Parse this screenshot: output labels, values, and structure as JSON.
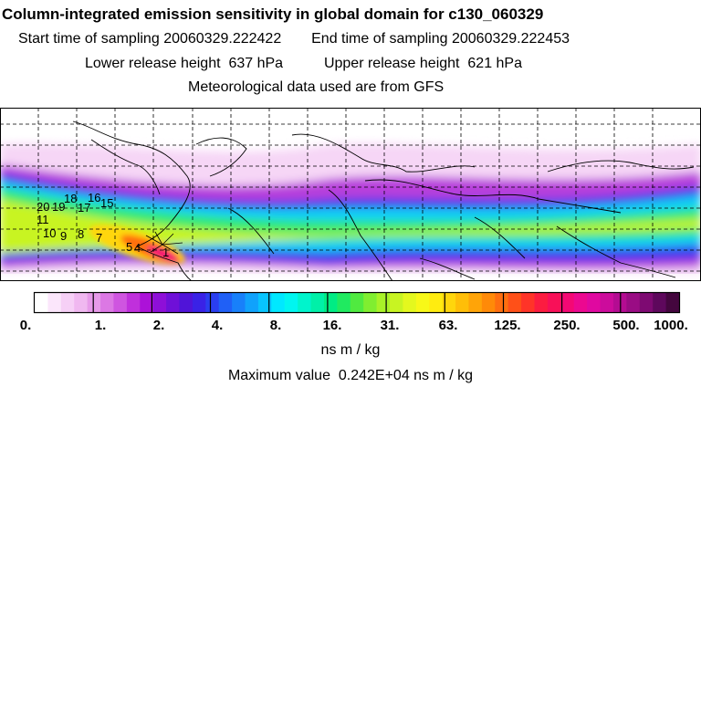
{
  "header": {
    "title": "Column-integrated emission sensitivity in global domain for c130_060329",
    "start_label": "Start time of sampling",
    "start_value": "20060329.222422",
    "end_label": "End time of sampling",
    "end_value": "20060329.222453",
    "lower_label": "Lower release height",
    "lower_value": "637 hPa",
    "upper_label": "Upper release height",
    "upper_value": "621 hPa",
    "met_line": "Meteorological data used are from GFS"
  },
  "map": {
    "track_labels": [
      "20",
      "19",
      "18",
      "17",
      "16",
      "15",
      "11",
      "10",
      "9",
      "8",
      "7",
      "5",
      "4",
      "1"
    ],
    "colors": {
      "land_outline": "#000000",
      "grid": "#000000"
    }
  },
  "colorbar": {
    "units": "ns m / kg",
    "tick_labels": [
      "0.",
      "1.",
      "2.",
      "4.",
      "8.",
      "16.",
      "31.",
      "63.",
      "125.",
      "250.",
      "500.",
      "1000."
    ],
    "colors": [
      "#ffffff",
      "#fbe6fb",
      "#f6d0f6",
      "#f0b8f0",
      "#e79ae9",
      "#dc78e4",
      "#cf55e0",
      "#c030dc",
      "#ac12d8",
      "#8e0fd8",
      "#6f10d8",
      "#5014d8",
      "#3a22e6",
      "#2a3ef0",
      "#2060f6",
      "#1880fa",
      "#10a2fc",
      "#08c4fe",
      "#00e8ff",
      "#00f6f0",
      "#00f4cc",
      "#00f0a8",
      "#00ec84",
      "#20ea60",
      "#50ea40",
      "#80ee30",
      "#a8f228",
      "#c8f422",
      "#e4f81e",
      "#f8f818",
      "#ffec10",
      "#ffd60c",
      "#ffbe08",
      "#ffa408",
      "#ff8a08",
      "#ff6e10",
      "#ff5018",
      "#ff3428",
      "#fc1c40",
      "#f81058",
      "#f40874",
      "#ec0890",
      "#e008a0",
      "#cc0c9c",
      "#b40c92",
      "#9a0c84",
      "#7e0a72",
      "#5e085c",
      "#44063e"
    ]
  },
  "footer": {
    "max_label": "Maximum value",
    "max_value": "0.242E+04 ns m / kg"
  }
}
